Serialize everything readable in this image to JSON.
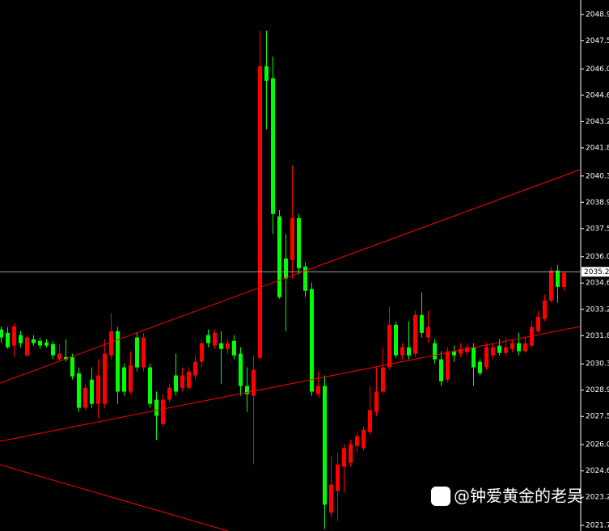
{
  "chart_data": {
    "type": "candlestick",
    "open": [
      2032.13,
      2031.95,
      2031.27,
      2031.83,
      2030.75,
      2031.61,
      2031.52,
      2031.44,
      2031.35,
      2030.54,
      2030.66,
      2030.66,
      2029.8,
      2027.96,
      2029.46,
      2028.17,
      2028.17,
      2030.75,
      2032.04,
      2030.11,
      2028.82,
      2031.7,
      2030.11,
      2030.11,
      2028.39,
      2027.1,
      2028.39,
      2029.68,
      2029.03,
      2029.03,
      2029.68,
      2030.41,
      2031.83,
      2031.27,
      2031.4,
      2031.09,
      2031.52,
      2030.84,
      2029.12,
      2028.6,
      2030.62,
      2046.14,
      2045.5,
      2038.15,
      2035.91,
      2035.82,
      2038.06,
      2035.48,
      2034.28,
      2028.69,
      2029.12,
      2022.37,
      2023.53,
      2024.82,
      2025.03,
      2025.93,
      2025.81,
      2026.67,
      2027.74,
      2028.82,
      2030.11,
      2032.38,
      2030.75,
      2031.18,
      2030.84,
      2032.9,
      2031.7,
      2031.4,
      2030.54,
      2029.46,
      2030.97,
      2030.84,
      2030.92,
      2031.18,
      2030.41,
      2030.11,
      2030.75,
      2031.27,
      2030.88,
      2031.09,
      2031.4,
      2030.97,
      2031.27,
      2032.04,
      2032.69,
      2033.67,
      2035.27,
      2034.4
    ],
    "high": [
      2032.3,
      2032.26,
      2032.47,
      2032.04,
      2031.83,
      2031.83,
      2031.7,
      2031.61,
      2031.52,
      2031.35,
      2031.61,
      2030.84,
      2030.11,
      2029.25,
      2030.11,
      2030.54,
      2031.61,
      2032.99,
      2032.26,
      2030.32,
      2030.97,
      2031.95,
      2031.95,
      2030.32,
      2028.82,
      2028.69,
      2029.25,
      2030.84,
      2030.11,
      2030.11,
      2030.75,
      2031.61,
      2032.13,
      2032.13,
      2032.04,
      2031.61,
      2031.83,
      2031.18,
      2030.11,
      2030.75,
      2048.04,
      2048.04,
      2046.66,
      2038.49,
      2037.2,
      2040.86,
      2038.28,
      2035.7,
      2034.62,
      2029.89,
      2029.68,
      2025.38,
      2025.59,
      2026.02,
      2026.24,
      2026.67,
      2026.97,
      2029.12,
      2030.11,
      2031.18,
      2033.33,
      2032.56,
      2031.4,
      2032.56,
      2033.12,
      2034.1,
      2033.12,
      2031.61,
      2030.97,
      2031.18,
      2031.27,
      2031.4,
      2031.4,
      2031.4,
      2030.54,
      2031.4,
      2031.4,
      2031.61,
      2031.7,
      2031.61,
      2031.95,
      2031.7,
      2032.56,
      2033.12,
      2033.98,
      2035.48,
      2035.57,
      2035.22
    ],
    "low": [
      2031.4,
      2031.09,
      2030.66,
      2031.18,
      2030.66,
      2031.27,
      2031.09,
      2031.18,
      2030.54,
      2030.41,
      2030.41,
      2029.46,
      2027.74,
      2027.83,
      2027.96,
      2027.4,
      2027.96,
      2030.54,
      2028.17,
      2028.6,
      2028.69,
      2029.89,
      2029.89,
      2027.96,
      2026.24,
      2026.97,
      2028.26,
      2028.6,
      2028.82,
      2028.94,
      2029.46,
      2030.11,
      2031.18,
      2031.09,
      2029.25,
      2030.84,
      2030.54,
      2028.6,
      2027.74,
      2024.95,
      2030.54,
      2042.79,
      2037.2,
      2033.76,
      2032.04,
      2034.84,
      2035.05,
      2033.85,
      2028.6,
      2028.51,
      2021.51,
      2022.15,
      2021.94,
      2023.44,
      2024.82,
      2025.59,
      2025.68,
      2026.54,
      2027.53,
      2028.69,
      2029.98,
      2030.62,
      2030.54,
      2030.54,
      2030.66,
      2031.7,
      2031.4,
      2030.32,
      2029.12,
      2029.33,
      2030.41,
      2030.66,
      2030.75,
      2029.12,
      2029.68,
      2029.98,
      2030.54,
      2030.75,
      2030.75,
      2030.92,
      2030.75,
      2030.88,
      2031.18,
      2031.95,
      2032.56,
      2033.55,
      2033.55,
      2034.19
    ],
    "close": [
      2031.7,
      2031.18,
      2032.3,
      2031.4,
      2031.7,
      2031.4,
      2031.27,
      2031.27,
      2030.75,
      2030.84,
      2030.54,
      2029.63,
      2027.96,
      2029.03,
      2028.17,
      2029.68,
      2030.84,
      2032.04,
      2028.82,
      2028.82,
      2030.23,
      2030.11,
      2031.7,
      2028.17,
      2027.53,
      2028.39,
      2029.03,
      2028.82,
      2029.68,
      2029.89,
      2030.41,
      2031.4,
      2031.4,
      2031.95,
      2031.09,
      2031.4,
      2030.75,
      2029.12,
      2028.69,
      2029.98,
      2046.14,
      2045.37,
      2038.28,
      2033.85,
      2034.84,
      2038.06,
      2035.39,
      2034.19,
      2028.82,
      2029.12,
      2022.8,
      2023.87,
      2024.95,
      2025.81,
      2026.02,
      2026.45,
      2026.79,
      2027.83,
      2028.82,
      2030.11,
      2032.38,
      2030.75,
      2031.18,
      2030.75,
      2032.9,
      2031.95,
      2032.26,
      2030.54,
      2029.37,
      2030.97,
      2030.75,
      2031.09,
      2031.18,
      2030.11,
      2029.8,
      2031.18,
      2031.18,
      2030.88,
      2031.18,
      2031.4,
      2030.97,
      2031.4,
      2032.26,
      2032.81,
      2033.67,
      2035.27,
      2034.4,
      2035.14
    ],
    "up_color": "#ff0000",
    "down_color": "#00ff00",
    "ylim": [
      2021.4,
      2049.67
    ],
    "yticks": [
      2048.9,
      2047.5,
      {
        "value": 2046.0,
        "label": "2046.0"
      },
      2044.6,
      2043.2,
      2041.8,
      2040.3,
      2038.9,
      2037.5,
      {
        "value": 2036.0,
        "label": "2036.0"
      },
      2034.6,
      2033.2,
      2031.8,
      2030.3,
      2028.9,
      2027.5,
      {
        "value": 2026.0,
        "label": "2026.0"
      },
      2024.6,
      2023.2,
      2021.7
    ],
    "current_price": 2035.2,
    "watermark": "@钟爱黄金的老吴"
  }
}
